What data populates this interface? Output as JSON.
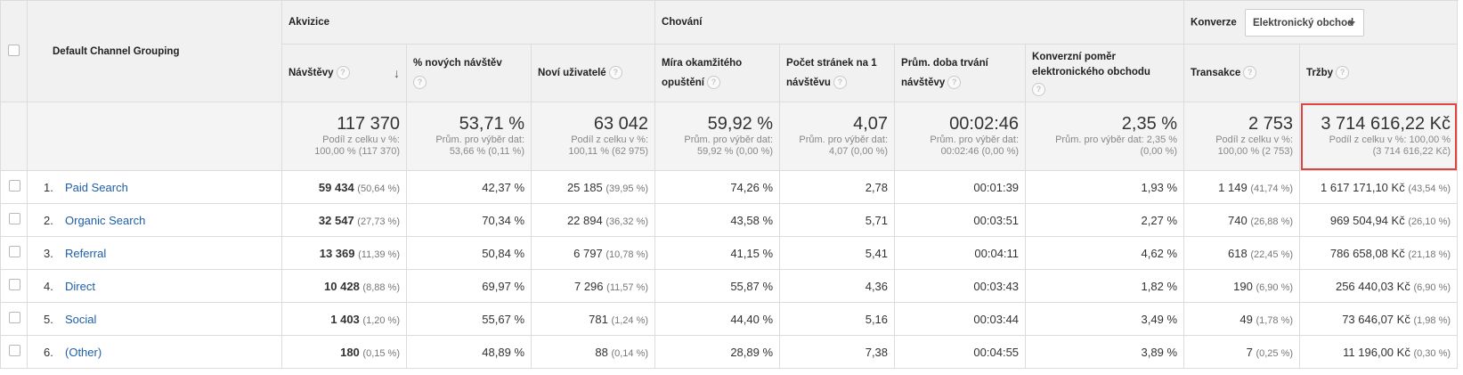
{
  "header": {
    "dimension_label": "Default Channel Grouping",
    "groups": {
      "acquisition": "Akvizice",
      "behavior": "Chování",
      "conversions": "Konverze"
    },
    "conversion_select": "Elektronický obchod",
    "help_glyph": "?",
    "sort_glyph": "↓",
    "columns": [
      "Návštěvy",
      "% nových návštěv",
      "Noví uživatelé",
      "Míra okamžitého opuštění",
      "Počet stránek na 1 návštěvu",
      "Prům. doba trvání návštěvy",
      "Konverzní poměr elektronického obchodu",
      "Transakce",
      "Tržby"
    ]
  },
  "totals": [
    {
      "value": "117 370",
      "sub1": "Podíl z celku v %:",
      "sub2": "100,00 % (117 370)"
    },
    {
      "value": "53,71 %",
      "sub1": "Prům. pro výběr dat:",
      "sub2": "53,66 % (0,11 %)"
    },
    {
      "value": "63 042",
      "sub1": "Podíl z celku v %:",
      "sub2": "100,11 % (62 975)"
    },
    {
      "value": "59,92 %",
      "sub1": "Prům. pro výběr dat:",
      "sub2": "59,92 % (0,00 %)"
    },
    {
      "value": "4,07",
      "sub1": "Prům. pro výběr dat:",
      "sub2": "4,07 (0,00 %)"
    },
    {
      "value": "00:02:46",
      "sub1": "Prům. pro výběr dat:",
      "sub2": "00:02:46 (0,00 %)"
    },
    {
      "value": "2,35 %",
      "sub1": "Prům. pro výběr dat: 2,35 %",
      "sub2": "(0,00 %)"
    },
    {
      "value": "2 753",
      "sub1": "Podíl z celku v %:",
      "sub2": "100,00 % (2 753)"
    },
    {
      "value": "3 714 616,22 Kč",
      "sub1": "Podíl z celku v %: 100,00 %",
      "sub2": "(3 714 616,22 Kč)"
    }
  ],
  "rows": [
    {
      "idx": "1.",
      "channel": "Paid Search",
      "visits": "59 434",
      "visits_pct": "(50,64 %)",
      "new_pct": "42,37 %",
      "new_users": "25 185",
      "new_users_pct": "(39,95 %)",
      "bounce": "74,26 %",
      "pages": "2,78",
      "duration": "00:01:39",
      "conv": "1,93 %",
      "trans": "1 149",
      "trans_pct": "(41,74 %)",
      "revenue": "1 617 171,10 Kč",
      "revenue_pct": "(43,54 %)"
    },
    {
      "idx": "2.",
      "channel": "Organic Search",
      "visits": "32 547",
      "visits_pct": "(27,73 %)",
      "new_pct": "70,34 %",
      "new_users": "22 894",
      "new_users_pct": "(36,32 %)",
      "bounce": "43,58 %",
      "pages": "5,71",
      "duration": "00:03:51",
      "conv": "2,27 %",
      "trans": "740",
      "trans_pct": "(26,88 %)",
      "revenue": "969 504,94 Kč",
      "revenue_pct": "(26,10 %)"
    },
    {
      "idx": "3.",
      "channel": "Referral",
      "visits": "13 369",
      "visits_pct": "(11,39 %)",
      "new_pct": "50,84 %",
      "new_users": "6 797",
      "new_users_pct": "(10,78 %)",
      "bounce": "41,15 %",
      "pages": "5,41",
      "duration": "00:04:11",
      "conv": "4,62 %",
      "trans": "618",
      "trans_pct": "(22,45 %)",
      "revenue": "786 658,08 Kč",
      "revenue_pct": "(21,18 %)"
    },
    {
      "idx": "4.",
      "channel": "Direct",
      "visits": "10 428",
      "visits_pct": "(8,88 %)",
      "new_pct": "69,97 %",
      "new_users": "7 296",
      "new_users_pct": "(11,57 %)",
      "bounce": "55,87 %",
      "pages": "4,36",
      "duration": "00:03:43",
      "conv": "1,82 %",
      "trans": "190",
      "trans_pct": "(6,90 %)",
      "revenue": "256 440,03 Kč",
      "revenue_pct": "(6,90 %)"
    },
    {
      "idx": "5.",
      "channel": "Social",
      "visits": "1 403",
      "visits_pct": "(1,20 %)",
      "new_pct": "55,67 %",
      "new_users": "781",
      "new_users_pct": "(1,24 %)",
      "bounce": "44,40 %",
      "pages": "5,16",
      "duration": "00:03:44",
      "conv": "3,49 %",
      "trans": "49",
      "trans_pct": "(1,78 %)",
      "revenue": "73 646,07 Kč",
      "revenue_pct": "(1,98 %)"
    },
    {
      "idx": "6.",
      "channel": "(Other)",
      "visits": "180",
      "visits_pct": "(0,15 %)",
      "new_pct": "48,89 %",
      "new_users": "88",
      "new_users_pct": "(0,14 %)",
      "bounce": "28,89 %",
      "pages": "7,38",
      "duration": "00:04:55",
      "conv": "3,89 %",
      "trans": "7",
      "trans_pct": "(0,25 %)",
      "revenue": "11 196,00 Kč",
      "revenue_pct": "(0,30 %)"
    }
  ],
  "colors": {
    "link": "#1f5fa5",
    "highlight_border": "#e0443f",
    "header_bg": "#f1f1f1"
  }
}
